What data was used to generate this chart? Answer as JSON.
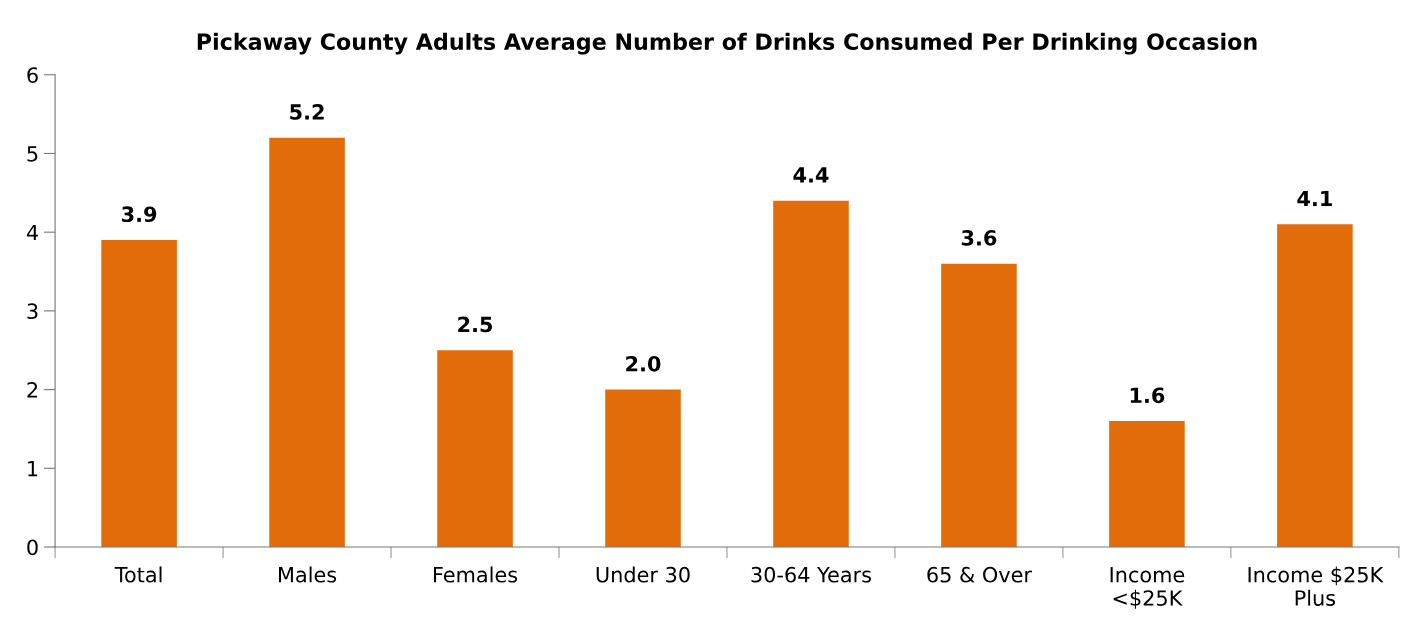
{
  "chart_data": {
    "type": "bar",
    "title": "Pickaway County Adults Average Number of Drinks Consumed Per Drinking Occasion",
    "categories": [
      "Total",
      "Males",
      "Females",
      "Under 30",
      "30-64 Years",
      "65 & Over",
      "Income\n<$25K",
      "Income $25K\nPlus"
    ],
    "values": [
      3.9,
      5.2,
      2.5,
      2.0,
      4.4,
      3.6,
      1.6,
      4.1
    ],
    "value_labels": [
      "3.9",
      "5.2",
      "2.5",
      "2.0",
      "4.4",
      "3.6",
      "1.6",
      "4.1"
    ],
    "color": "#e36c0a",
    "ylim": [
      0,
      6
    ],
    "yticks": [
      0,
      1,
      2,
      3,
      4,
      5,
      6
    ],
    "grid": false,
    "legend": false
  }
}
